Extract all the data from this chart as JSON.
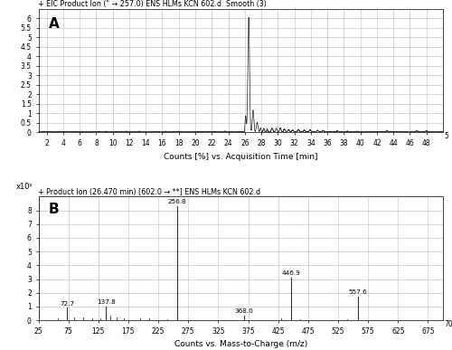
{
  "panel_A": {
    "title": "+ EIC Product Ion (\" → 257.0) ENS HLMs KCN 602.d  Smooth (3)",
    "xlabel": "Counts [%] vs. Acquisition Time [min]",
    "xmin": 1,
    "xmax": 50,
    "ymin": 0,
    "ymax": 6.5,
    "yticks": [
      0,
      0.5,
      1,
      1.5,
      2,
      2.5,
      3,
      3.5,
      4,
      4.5,
      5,
      5.5,
      6
    ],
    "ytick_labels": [
      "0",
      "0.5",
      "1",
      "1.5",
      "2",
      "2.5",
      "3",
      "3.5",
      "4",
      "4.5",
      "5",
      "5.5",
      "6"
    ],
    "xticks": [
      2,
      4,
      6,
      8,
      10,
      12,
      14,
      16,
      18,
      20,
      22,
      24,
      26,
      28,
      30,
      32,
      34,
      36,
      38,
      40,
      42,
      44,
      46,
      48
    ],
    "label": "A",
    "last_xlabel": "5",
    "color": "#333333"
  },
  "panel_B": {
    "title": "+ Product Ion (26.470 min) [602.0 → **] ENS HLMs KCN 602.d",
    "xlabel": "Counts vs. Mass-to-Charge (m/z)",
    "xmin": 25,
    "xmax": 700,
    "ymin": 0,
    "ymax": 9,
    "yticks": [
      0,
      1,
      2,
      3,
      4,
      5,
      6,
      7,
      8
    ],
    "ytick_labels": [
      "0",
      "1",
      "2",
      "3",
      "4",
      "5",
      "6",
      "7",
      "8"
    ],
    "xticks": [
      25,
      75,
      125,
      175,
      225,
      275,
      325,
      375,
      425,
      475,
      525,
      575,
      625,
      675
    ],
    "xtick_labels": [
      "25",
      "75",
      "125",
      "175",
      "225",
      "275",
      "325",
      "375",
      "425",
      "475",
      "525",
      "575",
      "625",
      "675"
    ],
    "label": "B",
    "scale_label": "x10²",
    "peaks": [
      {
        "mz": 72.7,
        "intensity": 0.9,
        "label": "72.7"
      },
      {
        "mz": 137.8,
        "intensity": 1.0,
        "label": "137.8"
      },
      {
        "mz": 256.8,
        "intensity": 8.3,
        "label": "256.8"
      },
      {
        "mz": 368.0,
        "intensity": 0.35,
        "label": "368.0"
      },
      {
        "mz": 446.9,
        "intensity": 3.1,
        "label": "446.9"
      },
      {
        "mz": 557.6,
        "intensity": 1.7,
        "label": "557.6"
      }
    ],
    "minor_peaks": [
      {
        "mz": 58,
        "intensity": 0.12
      },
      {
        "mz": 85,
        "intensity": 0.18
      },
      {
        "mz": 100,
        "intensity": 0.22
      },
      {
        "mz": 115,
        "intensity": 0.12
      },
      {
        "mz": 128,
        "intensity": 0.15
      },
      {
        "mz": 145,
        "intensity": 0.35
      },
      {
        "mz": 155,
        "intensity": 0.18
      },
      {
        "mz": 168,
        "intensity": 0.12
      },
      {
        "mz": 195,
        "intensity": 0.15
      },
      {
        "mz": 210,
        "intensity": 0.12
      },
      {
        "mz": 240,
        "intensity": 0.1
      },
      {
        "mz": 430,
        "intensity": 0.12
      },
      {
        "mz": 462,
        "intensity": 0.1
      },
      {
        "mz": 540,
        "intensity": 0.1
      }
    ],
    "color": "#333333"
  },
  "bg_color": "#ffffff",
  "grid_color": "#c8c8c8",
  "title_fontsize": 5.8,
  "tick_fontsize": 5.5,
  "label_fontsize": 6.5,
  "panel_label_fontsize": 11
}
